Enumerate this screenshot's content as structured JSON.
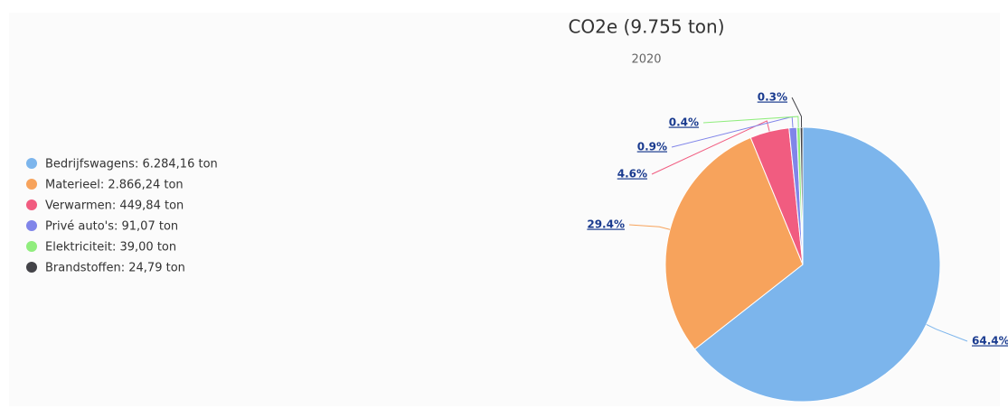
{
  "chart_data": {
    "type": "pie",
    "title": "CO2e (9.755 ton)",
    "subtitle": "2020",
    "categories": [
      "Bedrijfswagens: 6.284,16 ton",
      "Materieel: 2.866,24 ton",
      "Verwarmen: 449,84 ton",
      "Privé auto's: 91,07 ton",
      "Elektriciteit: 39,00 ton",
      "Brandstoffen: 24,79 ton"
    ],
    "values": [
      64.4,
      29.4,
      4.6,
      0.9,
      0.4,
      0.3
    ],
    "value_labels": [
      "64.4%",
      "29.4%",
      "4.6%",
      "0.9%",
      "0.4%",
      "0.3%"
    ],
    "colors": [
      "#7cb5ec",
      "#f7a35c",
      "#f15c80",
      "#8085e9",
      "#90ed7d",
      "#434348"
    ],
    "legend": "left"
  }
}
